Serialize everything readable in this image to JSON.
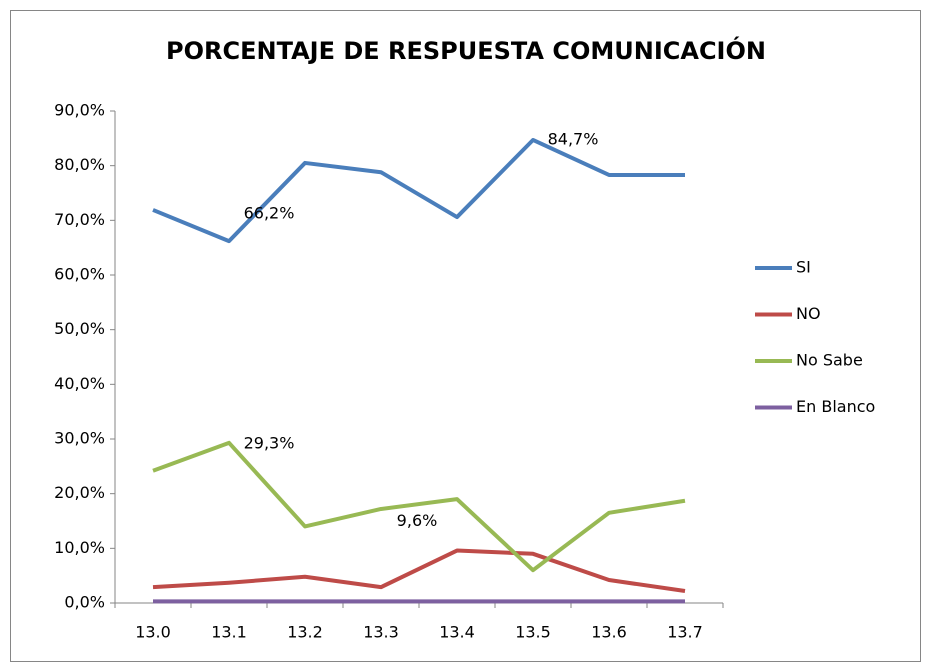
{
  "chart_data": {
    "type": "line",
    "title": "PORCENTAJE DE RESPUESTA COMUNICACIÓN",
    "categories": [
      "13.0",
      "13.1",
      "13.2",
      "13.3",
      "13.4",
      "13.5",
      "13.6",
      "13.7"
    ],
    "series": [
      {
        "name": "SI",
        "color": "#4a7ebb",
        "values": [
          71.9,
          66.2,
          80.5,
          78.8,
          70.6,
          84.7,
          78.3,
          78.3
        ],
        "value_labels": [
          null,
          "66,2%",
          null,
          null,
          null,
          "84,7%",
          null,
          null
        ]
      },
      {
        "name": "NO",
        "color": "#be4b48",
        "values": [
          2.9,
          3.7,
          4.8,
          2.9,
          9.6,
          9.0,
          4.2,
          2.2
        ],
        "value_labels": [
          null,
          null,
          null,
          null,
          "9,6%",
          null,
          null,
          null
        ]
      },
      {
        "name": "No Sabe",
        "color": "#98b954",
        "values": [
          24.2,
          29.3,
          14.0,
          17.2,
          19.0,
          6.0,
          16.5,
          18.7
        ],
        "value_labels": [
          null,
          "29,3%",
          null,
          null,
          null,
          null,
          null,
          null
        ]
      },
      {
        "name": "En Blanco",
        "color": "#7d60a0",
        "values": [
          0.3,
          0.3,
          0.3,
          0.3,
          0.3,
          0.3,
          0.3,
          0.3
        ]
      }
    ],
    "ylim": [
      0,
      90
    ],
    "yticks": [
      {
        "value": 0,
        "label": "0,0%"
      },
      {
        "value": 10,
        "label": "10,0%"
      },
      {
        "value": 20,
        "label": "20,0%"
      },
      {
        "value": 30,
        "label": "30,0%"
      },
      {
        "value": 40,
        "label": "40,0%"
      },
      {
        "value": 50,
        "label": "50,0%"
      },
      {
        "value": 60,
        "label": "60,0%"
      },
      {
        "value": 70,
        "label": "70,0%"
      },
      {
        "value": 80,
        "label": "80,0%"
      },
      {
        "value": 90,
        "label": "90,0%"
      }
    ],
    "grid": false,
    "legend": "right"
  }
}
